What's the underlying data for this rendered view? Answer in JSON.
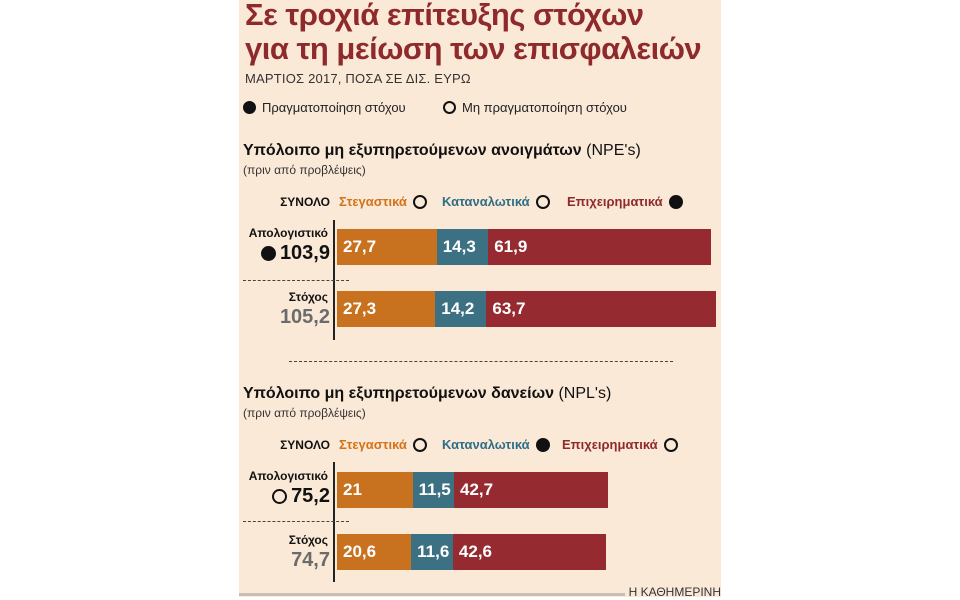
{
  "header": {
    "title_line1": "Σε τροχιά επίτευξης στόχων",
    "title_line2": "για τη μείωση των επισφαλειών",
    "subtitle": "ΜΑΡΤΙΟΣ 2017, ΠΟΣΑ ΣΕ ΔΙΣ. ΕΥΡΩ"
  },
  "legend": {
    "achieved": "Πραγματοποίηση στόχου",
    "not_achieved": "Μη πραγματοποίηση στόχου"
  },
  "colors": {
    "mortgage": "#c8721f",
    "consumer": "#3b7182",
    "business": "#952b30",
    "title": "#8e2a2c",
    "background": "#fbe9d8"
  },
  "categories_labels": {
    "total": "ΣΥΝΟΛΟ",
    "mortgage": "Στεγαστικά",
    "consumer": "Καταναλωτικά",
    "business": "Επιχειρηματικά"
  },
  "row_labels": {
    "actual": "Απολογιστικό",
    "target": "Στόχος"
  },
  "credit": "Η ΚΑΘΗΜΕΡΙΝΗ",
  "chart_data": [
    {
      "type": "bar",
      "stacked": true,
      "orientation": "horizontal",
      "title": "Υπόλοιπο μη εξυπηρετούμενων ανοιγμάτων",
      "title_paren": "(NPE's)",
      "subtitle": "(πριν από προβλέψεις)",
      "categories": [
        "Απολογιστικό",
        "Στόχος"
      ],
      "totals": [
        "103,9",
        "105,2"
      ],
      "total_achieved": true,
      "category_status": {
        "mortgage": false,
        "consumer": false,
        "business": true
      },
      "series": [
        {
          "name": "Στεγαστικά",
          "key": "mortgage",
          "values": [
            27.7,
            27.3
          ],
          "labels": [
            "27,7",
            "27,3"
          ]
        },
        {
          "name": "Καταναλωτικά",
          "key": "consumer",
          "values": [
            14.3,
            14.2
          ],
          "labels": [
            "14,3",
            "14,2"
          ]
        },
        {
          "name": "Επιχειρηματικά",
          "key": "business",
          "values": [
            61.9,
            63.7
          ],
          "labels": [
            "61,9",
            "63,7"
          ]
        }
      ]
    },
    {
      "type": "bar",
      "stacked": true,
      "orientation": "horizontal",
      "title": "Υπόλοιπο μη εξυπηρετούμενων δανείων",
      "title_paren": "(NPL's)",
      "subtitle": "(πριν από προβλέψεις)",
      "categories": [
        "Απολογιστικό",
        "Στόχος"
      ],
      "totals": [
        "75,2",
        "74,7"
      ],
      "total_achieved": false,
      "category_status": {
        "mortgage": false,
        "consumer": true,
        "business": false
      },
      "series": [
        {
          "name": "Στεγαστικά",
          "key": "mortgage",
          "values": [
            21,
            20.6
          ],
          "labels": [
            "21",
            "20,6"
          ]
        },
        {
          "name": "Καταναλωτικά",
          "key": "consumer",
          "values": [
            11.5,
            11.6
          ],
          "labels": [
            "11,5",
            "11,6"
          ]
        },
        {
          "name": "Επιχειρηματικά",
          "key": "business",
          "values": [
            42.7,
            42.6
          ],
          "labels": [
            "42,7",
            "42,6"
          ]
        }
      ]
    }
  ]
}
